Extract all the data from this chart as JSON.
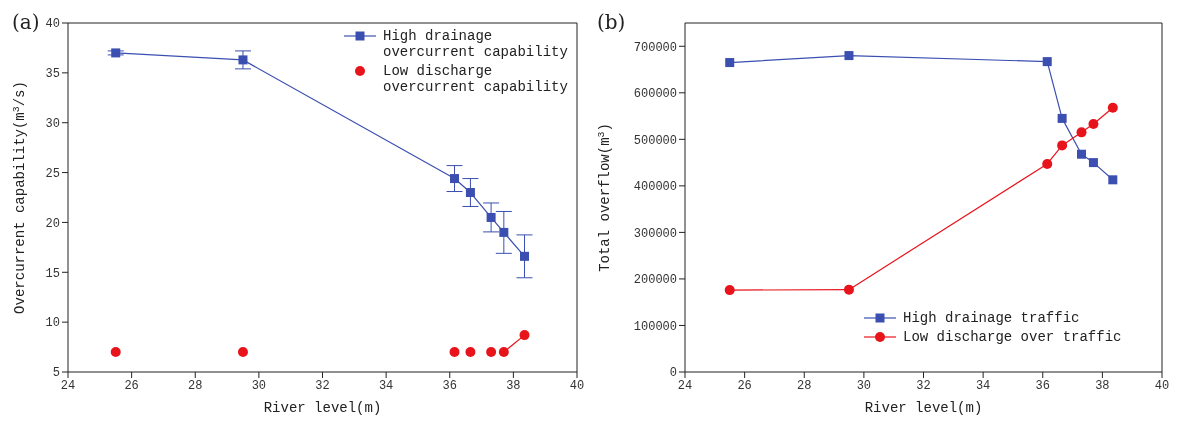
{
  "chart_data": [
    {
      "type": "line",
      "title": "(a)",
      "xlabel": "River level(m)",
      "ylabel": "Overcurrent capability(m$^{3}$/s)",
      "x": [
        25.5,
        29.5,
        36.15,
        36.65,
        37.3,
        37.7,
        38.35
      ],
      "xlim": [
        24,
        40
      ],
      "xticks": [
        24,
        26,
        28,
        30,
        32,
        34,
        36,
        38,
        40
      ],
      "ylim": [
        5,
        40
      ],
      "yticks": [
        5,
        10,
        15,
        20,
        25,
        30,
        35,
        40
      ],
      "legend": "top right",
      "series": [
        {
          "name": "High drainage overcurrent capability",
          "color": "#3b4fb0",
          "marker": "square",
          "values": [
            37,
            36.3,
            24.4,
            23,
            20.5,
            19,
            16.6
          ],
          "errors": [
            0.2,
            0.9,
            1.3,
            1.4,
            1.45,
            2.1,
            2.15
          ]
        },
        {
          "name": "Low discharge overcurrent capability",
          "type": "scatter",
          "color": "#e8141b",
          "marker": "circle",
          "values": [
            7,
            7,
            7,
            7,
            7,
            7,
            8.7
          ]
        },
        {
          "type": "line",
          "color": "#e8141b",
          "marker": "none",
          "x": [
            37.7,
            38.35
          ],
          "values": [
            7,
            8.7
          ]
        }
      ]
    },
    {
      "type": "line",
      "title": "(b)",
      "xlabel": "River level(m)",
      "ylabel": "Total overflow(m$^{3}$)",
      "x": [
        25.5,
        29.5,
        36.15,
        36.65,
        37.3,
        37.7,
        38.35
      ],
      "xlim": [
        24,
        40
      ],
      "xticks": [
        24,
        26,
        28,
        30,
        32,
        34,
        36,
        38,
        40
      ],
      "ylim": [
        0,
        750000
      ],
      "yticks": [
        0,
        100000,
        200000,
        300000,
        400000,
        500000,
        600000,
        700000
      ],
      "legend": "bottom right",
      "series": [
        {
          "name": "High drainage traffic",
          "color": "#3b4fb0",
          "marker": "square",
          "values": [
            665000,
            680000,
            667000,
            545000,
            468000,
            450000,
            413000
          ]
        },
        {
          "name": "Low discharge over traffic",
          "color": "#e8141b",
          "marker": "circle",
          "values": [
            176000,
            177000,
            447000,
            487000,
            515000,
            533000,
            568000
          ]
        }
      ]
    }
  ]
}
